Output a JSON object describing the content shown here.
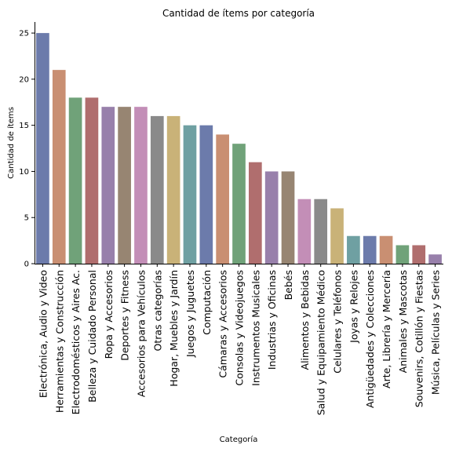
{
  "chart_data": {
    "type": "bar",
    "title": "Cantidad de ítems por categoría",
    "xlabel": "Categoría",
    "ylabel": "Cantidad de ítems",
    "ylim": [
      0,
      26.2
    ],
    "yticks": [
      0,
      5,
      10,
      15,
      20,
      25
    ],
    "grid": false,
    "legend": "none",
    "categories": [
      "Electrónica, Audio y Video",
      "Herramientas y Construcción",
      "Electrodomésticos y Aires Ac.",
      "Belleza y Cuidado Personal",
      "Ropa y Accesorios",
      "Deportes y Fitness",
      "Accesorios para Vehículos",
      "Otras categorías",
      "Hogar, Muebles y Jardín",
      "Juegos y Juguetes",
      "Computación",
      "Cámaras y Accesorios",
      "Consolas y Videojuegos",
      "Instrumentos Musicales",
      "Industrias y Oficinas",
      "Bebés",
      "Alimentos y Bebidas",
      "Salud y Equipamiento Médico",
      "Celulares y Teléfonos",
      "Joyas y Relojes",
      "Antigüedades y Colecciones",
      "Arte, Librería y Mercería",
      "Animales y Mascotas",
      "Souvenirs, Cotillón y Fiestas",
      "Música, Películas y Series"
    ],
    "values": [
      25,
      21,
      18,
      18,
      17,
      17,
      17,
      16,
      16,
      15,
      15,
      14,
      13,
      11,
      10,
      10,
      7,
      7,
      6,
      3,
      3,
      3,
      2,
      2,
      1
    ],
    "colors": [
      "#6c7bab",
      "#c98f72",
      "#70a279",
      "#b06e6e",
      "#9880ab",
      "#978572",
      "#c38eb7",
      "#8a8a8a",
      "#c9b278",
      "#6fa0a2"
    ]
  }
}
